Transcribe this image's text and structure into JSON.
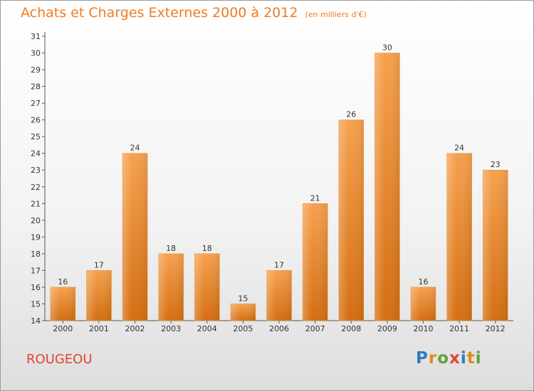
{
  "title": "Achats et Charges Externes 2000 à 2012",
  "subtitle": "(en milliers d'€)",
  "commune": "ROUGEOU",
  "logo": {
    "letters": [
      "P",
      "r",
      "o",
      "x",
      "i",
      "t",
      "i"
    ],
    "colors": [
      "#2e7cc2",
      "#e7861a",
      "#5ba33a",
      "#e2452c",
      "#2e7cc2",
      "#e7861a",
      "#5ba33a"
    ]
  },
  "colors": {
    "bar": "#f08c2f",
    "title": "#f07b23",
    "commune": "#e2452c"
  },
  "chart_data": {
    "type": "bar",
    "categories": [
      "2000",
      "2001",
      "2002",
      "2003",
      "2004",
      "2005",
      "2006",
      "2007",
      "2008",
      "2009",
      "2010",
      "2011",
      "2012"
    ],
    "values": [
      16,
      17,
      24,
      18,
      18,
      15,
      17,
      21,
      26,
      30,
      16,
      24,
      23
    ],
    "ylim": [
      14,
      31
    ],
    "yticks": [
      14,
      15,
      16,
      17,
      18,
      19,
      20,
      21,
      22,
      23,
      24,
      25,
      26,
      27,
      28,
      29,
      30,
      31
    ],
    "grid": false,
    "data_labels": true
  }
}
